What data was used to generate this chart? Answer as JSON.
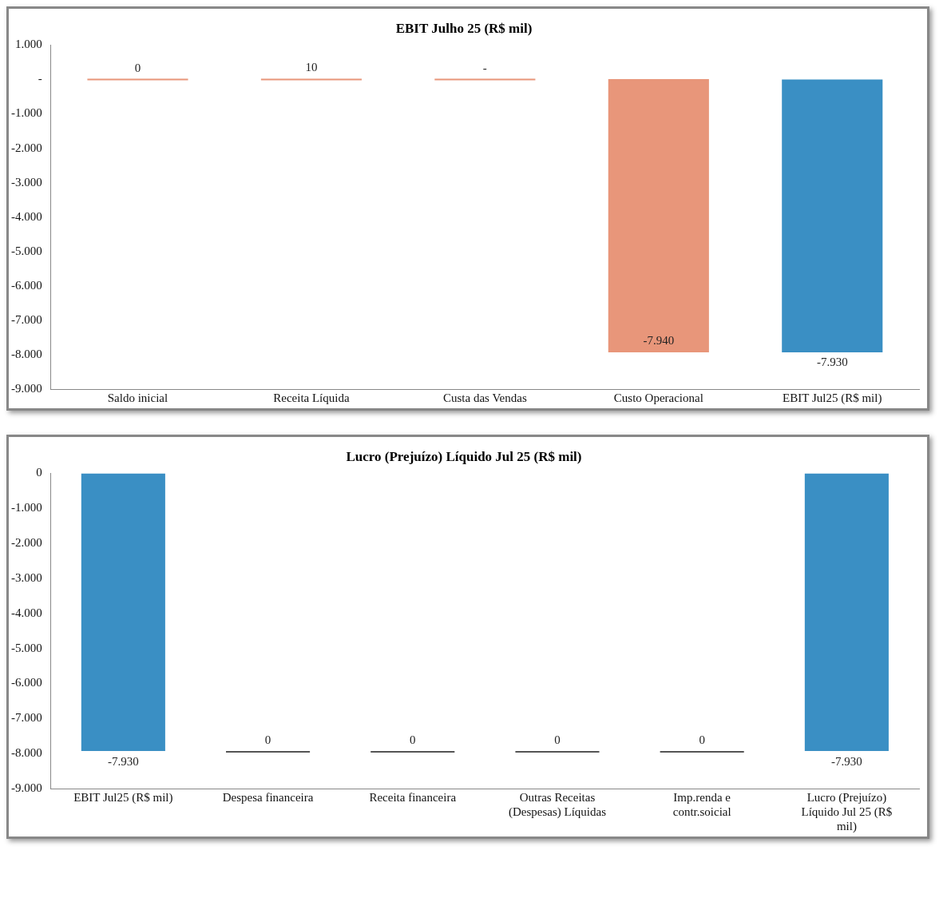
{
  "chart_data": [
    {
      "type": "bar",
      "title": "EBIT Julho 25 (R$ mil)",
      "categories": [
        "Saldo inicial",
        "Receita Líquida",
        "Custa das Vendas",
        "Custo Operacional",
        "EBIT Jul25 (R$ mil)"
      ],
      "values": [
        0,
        10,
        0,
        -7940,
        -7930
      ],
      "base": [
        0,
        0,
        0,
        10,
        0
      ],
      "value_labels": [
        "0",
        "10",
        "-",
        "-7.940",
        "-7.930"
      ],
      "colors": [
        "#e8967a",
        "#e8967a",
        "#e8967a",
        "#e8967a",
        "#3a8fc4"
      ],
      "ylim": [
        -9000,
        1000
      ],
      "yticks": [
        {
          "value": -9000,
          "label": "-9.000"
        },
        {
          "value": -8000,
          "label": "-8.000"
        },
        {
          "value": -7000,
          "label": "-7.000"
        },
        {
          "value": -6000,
          "label": "-6.000"
        },
        {
          "value": -5000,
          "label": "-5.000"
        },
        {
          "value": -4000,
          "label": "-4.000"
        },
        {
          "value": -3000,
          "label": "-3.000"
        },
        {
          "value": -2000,
          "label": "-2.000"
        },
        {
          "value": -1000,
          "label": "-1.000"
        },
        {
          "value": 0,
          "label": "-"
        },
        {
          "value": 1000,
          "label": "1.000"
        }
      ],
      "grid": false,
      "legend": false
    },
    {
      "type": "bar",
      "title": "Lucro (Prejuízo) Líquido Jul 25 (R$ mil)",
      "categories": [
        "EBIT Jul25 (R$ mil)",
        "Despesa financeira",
        "Receita financeira",
        "Outras Receitas (Despesas) Líquidas",
        "Imp.renda e contr.soicial",
        "Lucro (Prejuízo) Líquido Jul 25 (R$ mil)"
      ],
      "values": [
        -7930,
        0,
        0,
        0,
        0,
        -7930
      ],
      "base": [
        0,
        -7930,
        -7930,
        -7930,
        -7930,
        0
      ],
      "value_labels": [
        "-7.930",
        "0",
        "0",
        "0",
        "0",
        "-7.930"
      ],
      "colors": [
        "#3a8fc4",
        "#555555",
        "#555555",
        "#555555",
        "#555555",
        "#3a8fc4"
      ],
      "ylim": [
        -9000,
        0
      ],
      "yticks": [
        {
          "value": -9000,
          "label": "-9.000"
        },
        {
          "value": -8000,
          "label": "-8.000"
        },
        {
          "value": -7000,
          "label": "-7.000"
        },
        {
          "value": -6000,
          "label": "-6.000"
        },
        {
          "value": -5000,
          "label": "-5.000"
        },
        {
          "value": -4000,
          "label": "-4.000"
        },
        {
          "value": -3000,
          "label": "-3.000"
        },
        {
          "value": -2000,
          "label": "-2.000"
        },
        {
          "value": -1000,
          "label": "-1.000"
        },
        {
          "value": 0,
          "label": "0"
        }
      ],
      "grid": false,
      "legend": false
    }
  ]
}
